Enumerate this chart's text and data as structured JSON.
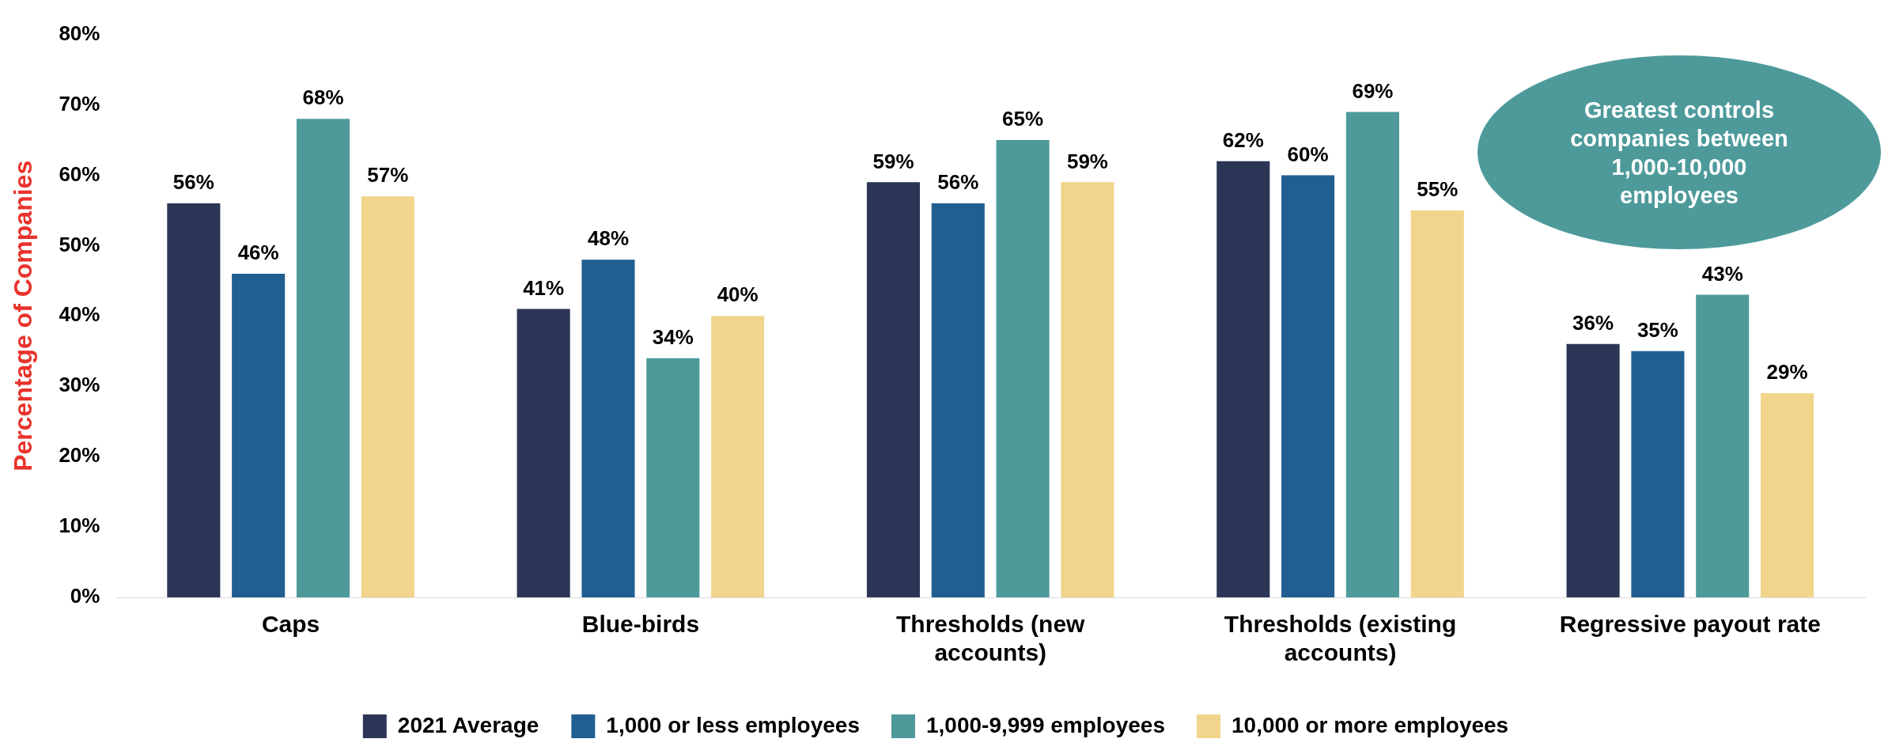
{
  "chart_data": {
    "type": "bar",
    "ylabel": "Percentage of Companies",
    "categories": [
      "Caps",
      "Blue-birds",
      "Thresholds (new accounts)",
      "Thresholds (existing accounts)",
      "Regressive payout rate"
    ],
    "series": [
      {
        "name": "2021 Average",
        "color": "#2b3656",
        "values": [
          56,
          41,
          59,
          62,
          36
        ],
        "value_labels": [
          "56%",
          "41%",
          "59%",
          "62%",
          "36%"
        ]
      },
      {
        "name": "1,000 or less employees",
        "color": "#215e92",
        "values": [
          46,
          48,
          56,
          60,
          35
        ],
        "value_labels": [
          "46%",
          "48%",
          "56%",
          "60%",
          "35%"
        ]
      },
      {
        "name": "1,000-9,999 employees",
        "color": "#4e9a9b",
        "values": [
          68,
          34,
          65,
          69,
          43
        ],
        "value_labels": [
          "68%",
          "34%",
          "65%",
          "69%",
          "43%"
        ]
      },
      {
        "name": "10,000 or more employees",
        "color": "#f2d58c",
        "values": [
          57,
          40,
          59,
          55,
          29
        ],
        "value_labels": [
          "57%",
          "40%",
          "59%",
          "55%",
          "29%"
        ]
      }
    ],
    "ylim": [
      0,
      80
    ],
    "yticks": [
      {
        "value": 0,
        "label": "0%"
      },
      {
        "value": 10,
        "label": "10%"
      },
      {
        "value": 20,
        "label": "20%"
      },
      {
        "value": 30,
        "label": "30%"
      },
      {
        "value": 40,
        "label": "40%"
      },
      {
        "value": 50,
        "label": "50%"
      },
      {
        "value": 60,
        "label": "60%"
      },
      {
        "value": 70,
        "label": "70%"
      },
      {
        "value": 80,
        "label": "80%"
      }
    ],
    "grid": false,
    "legend": "bottom",
    "annotations": [
      "Greatest controls companies between 1,000-10,000 employees"
    ]
  }
}
